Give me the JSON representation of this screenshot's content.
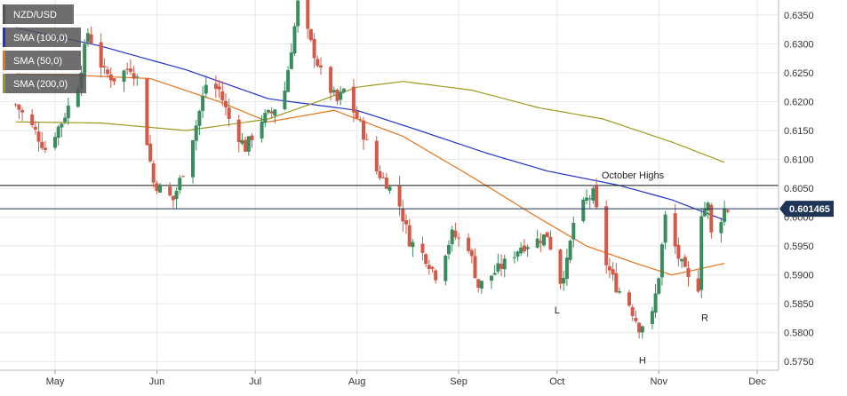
{
  "chart_data": {
    "type": "candlestick",
    "symbol": "NZD/USD",
    "legend": [
      {
        "label": "NZD/USD",
        "color": "#555555"
      },
      {
        "label": "SMA (100,0)",
        "color": "#2233cc"
      },
      {
        "label": "SMA (50,0)",
        "color": "#e8731a"
      },
      {
        "label": "SMA (200,0)",
        "color": "#a0981e"
      }
    ],
    "y_ticks": [
      "0.5750",
      "0.5800",
      "0.5850",
      "0.5900",
      "0.5950",
      "0.6000",
      "0.6050",
      "0.6100",
      "0.6150",
      "0.6200",
      "0.6250",
      "0.6300",
      "0.6350"
    ],
    "ylim": [
      0.5735,
      0.6376
    ],
    "x_ticks": [
      "May",
      "Jun",
      "Jul",
      "Aug",
      "Sep",
      "Oct",
      "Nov",
      "Dec"
    ],
    "current_price": {
      "label": "0.601465",
      "value": 0.601465,
      "color": "#1f3557"
    },
    "horizontal_line": {
      "label": "October Highs",
      "value": 0.6055
    },
    "pattern_labels": [
      {
        "text": "L",
        "date": "2023-10-01",
        "value": 0.5858
      },
      {
        "text": "H",
        "date": "2023-10-27",
        "value": 0.5771
      },
      {
        "text": "R",
        "date": "2023-11-15",
        "value": 0.5845
      }
    ],
    "colors": {
      "up": "#3a8c5e",
      "down": "#d35a48",
      "grid": "#e8e8e8"
    },
    "series_ranges": [
      {
        "start": "2023-04-19",
        "end": "2023-11-22",
        "type": "candles",
        "note_close_anchors": [
          [
            "2023-04-19",
            0.6195
          ],
          [
            "2023-04-25",
            0.6148
          ],
          [
            "2023-04-28",
            0.6118
          ],
          [
            "2023-05-03",
            0.6165
          ],
          [
            "2023-05-08",
            0.623
          ],
          [
            "2023-05-11",
            0.632
          ],
          [
            "2023-05-16",
            0.625
          ],
          [
            "2023-05-19",
            0.624
          ],
          [
            "2023-05-24",
            0.626
          ],
          [
            "2023-05-26",
            0.624
          ],
          [
            "2023-05-31",
            0.606
          ],
          [
            "2023-06-02",
            0.605
          ],
          [
            "2023-06-06",
            0.603
          ],
          [
            "2023-06-09",
            0.608
          ],
          [
            "2023-06-13",
            0.616
          ],
          [
            "2023-06-16",
            0.623
          ],
          [
            "2023-06-20",
            0.622
          ],
          [
            "2023-06-23",
            0.617
          ],
          [
            "2023-06-28",
            0.612
          ],
          [
            "2023-07-03",
            0.617
          ],
          [
            "2023-07-06",
            0.618
          ],
          [
            "2023-07-10",
            0.622
          ],
          [
            "2023-07-13",
            0.633
          ],
          [
            "2023-07-14",
            0.637
          ],
          [
            "2023-07-18",
            0.63
          ],
          [
            "2023-07-21",
            0.625
          ],
          [
            "2023-07-26",
            0.62
          ],
          [
            "2023-07-28",
            0.622
          ],
          [
            "2023-08-02",
            0.616
          ],
          [
            "2023-08-07",
            0.608
          ],
          [
            "2023-08-10",
            0.606
          ],
          [
            "2023-08-14",
            0.602
          ],
          [
            "2023-08-17",
            0.596
          ],
          [
            "2023-08-22",
            0.593
          ],
          [
            "2023-08-25",
            0.59
          ],
          [
            "2023-08-30",
            0.597
          ],
          [
            "2023-09-04",
            0.595
          ],
          [
            "2023-09-07",
            0.588
          ],
          [
            "2023-09-11",
            0.59
          ],
          [
            "2023-09-15",
            0.592
          ],
          [
            "2023-09-20",
            0.595
          ],
          [
            "2023-09-25",
            0.596
          ],
          [
            "2023-09-28",
            0.597
          ],
          [
            "2023-10-02",
            0.589
          ],
          [
            "2023-10-04",
            0.592
          ],
          [
            "2023-10-06",
            0.599
          ],
          [
            "2023-10-10",
            0.603
          ],
          [
            "2023-10-12",
            0.604
          ],
          [
            "2023-10-16",
            0.592
          ],
          [
            "2023-10-19",
            0.588
          ],
          [
            "2023-10-23",
            0.585
          ],
          [
            "2023-10-26",
            0.581
          ],
          [
            "2023-10-30",
            0.583
          ],
          [
            "2023-11-01",
            0.59
          ],
          [
            "2023-11-03",
            0.6
          ],
          [
            "2023-11-07",
            0.593
          ],
          [
            "2023-11-10",
            0.589
          ],
          [
            "2023-11-13",
            0.588
          ],
          [
            "2023-11-14",
            0.601
          ],
          [
            "2023-11-16",
            0.602
          ],
          [
            "2023-11-17",
            0.597
          ],
          [
            "2023-11-20",
            0.6
          ],
          [
            "2023-11-21",
            0.6014
          ]
        ]
      }
    ],
    "sma_anchors": {
      "SMA (100,0)": [
        [
          "2023-04-19",
          0.6328
        ],
        [
          "2023-05-15",
          0.6296
        ],
        [
          "2023-06-10",
          0.6255
        ],
        [
          "2023-07-05",
          0.6205
        ],
        [
          "2023-08-01",
          0.6185
        ],
        [
          "2023-08-20",
          0.615
        ],
        [
          "2023-09-10",
          0.611
        ],
        [
          "2023-09-28",
          0.608
        ],
        [
          "2023-10-20",
          0.6055
        ],
        [
          "2023-11-05",
          0.603
        ],
        [
          "2023-11-21",
          0.5995
        ]
      ],
      "SMA (50,0)": [
        [
          "2023-04-19",
          0.6248
        ],
        [
          "2023-05-10",
          0.6245
        ],
        [
          "2023-05-30",
          0.624
        ],
        [
          "2023-06-20",
          0.62
        ],
        [
          "2023-07-05",
          0.6165
        ],
        [
          "2023-07-25",
          0.6185
        ],
        [
          "2023-08-15",
          0.614
        ],
        [
          "2023-09-05",
          0.607
        ],
        [
          "2023-09-25",
          0.6
        ],
        [
          "2023-10-10",
          0.595
        ],
        [
          "2023-10-25",
          0.592
        ],
        [
          "2023-11-05",
          0.59
        ],
        [
          "2023-11-21",
          0.592
        ]
      ],
      "SMA (200,0)": [
        [
          "2023-04-19",
          0.6165
        ],
        [
          "2023-05-15",
          0.6163
        ],
        [
          "2023-06-10",
          0.615
        ],
        [
          "2023-07-05",
          0.617
        ],
        [
          "2023-07-20",
          0.62
        ],
        [
          "2023-08-01",
          0.6225
        ],
        [
          "2023-08-15",
          0.6235
        ],
        [
          "2023-09-05",
          0.622
        ],
        [
          "2023-09-25",
          0.619
        ],
        [
          "2023-10-15",
          0.617
        ],
        [
          "2023-11-05",
          0.613
        ],
        [
          "2023-11-21",
          0.6095
        ]
      ]
    }
  }
}
